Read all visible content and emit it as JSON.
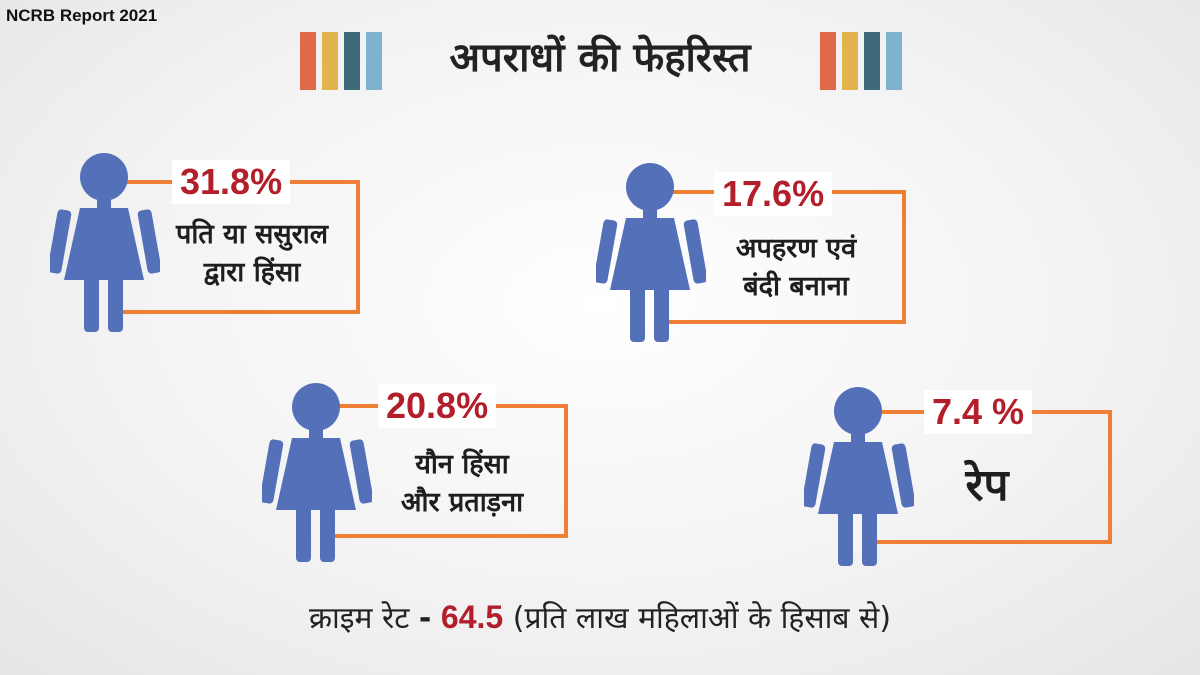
{
  "source": "NCRB Report 2021",
  "title": "अपराधों की फेहरिस्त",
  "colors": {
    "bars": [
      "#e0694c",
      "#e2b34e",
      "#3e6a7c",
      "#7eb3cf"
    ],
    "figure": "#5470b8",
    "frame": "#ef7f35",
    "percent": "#b31e2b"
  },
  "stats": [
    {
      "percent": "31.8%",
      "line1": "पति या ससुराल",
      "line2": "द्वारा हिंसा"
    },
    {
      "percent": "17.6%",
      "line1": "अपहरण एवं",
      "line2": "बंदी बनाना"
    },
    {
      "percent": "20.8%",
      "line1": "यौन हिंसा",
      "line2": "और प्रताड़ना"
    },
    {
      "percent": "7.4 %",
      "line1": "रेप"
    }
  ],
  "footer": {
    "prefix": "क्राइम रेट",
    "dash": "-",
    "rate": "64.5",
    "suffix": "(प्रति लाख महिलाओं के हिसाब से)"
  }
}
